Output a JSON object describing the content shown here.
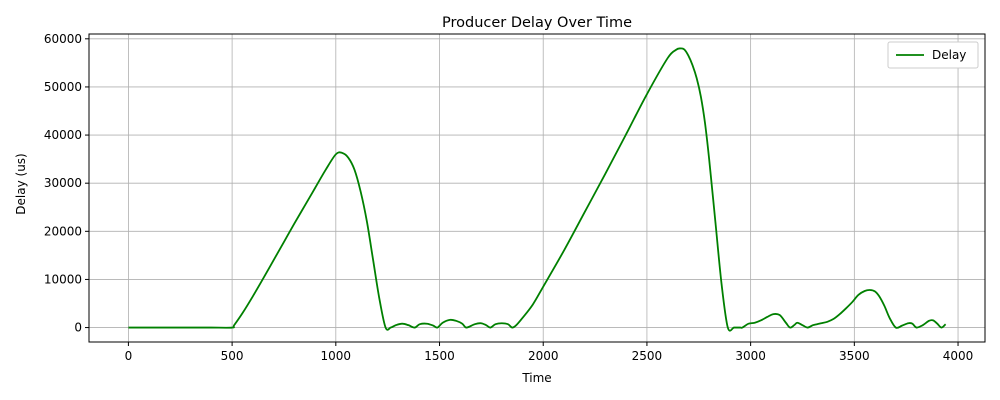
{
  "chart_data": {
    "type": "line",
    "title": "Producer Delay Over Time",
    "xlabel": "Time",
    "ylabel": "Delay (us)",
    "xlim": [
      -190,
      4130
    ],
    "ylim": [
      -3000,
      61000
    ],
    "xticks": [
      0,
      500,
      1000,
      1500,
      2000,
      2500,
      3000,
      3500,
      4000
    ],
    "yticks": [
      0,
      10000,
      20000,
      30000,
      40000,
      50000,
      60000
    ],
    "grid": true,
    "legend": "top-right",
    "series": [
      {
        "name": "Delay",
        "color": "#008000",
        "x": [
          0,
          100,
          200,
          300,
          400,
          500,
          510,
          550,
          600,
          650,
          700,
          750,
          800,
          850,
          900,
          950,
          1000,
          1030,
          1060,
          1090,
          1120,
          1150,
          1180,
          1210,
          1240,
          1265,
          1290,
          1320,
          1350,
          1380,
          1405,
          1440,
          1470,
          1490,
          1515,
          1550,
          1580,
          1610,
          1630,
          1670,
          1700,
          1725,
          1745,
          1770,
          1800,
          1830,
          1850,
          1870,
          1900,
          1950,
          2000,
          2100,
          2200,
          2300,
          2400,
          2500,
          2600,
          2640,
          2660,
          2680,
          2700,
          2720,
          2740,
          2760,
          2780,
          2800,
          2830,
          2860,
          2890,
          2920,
          2950,
          2960,
          2990,
          3020,
          3050,
          3080,
          3110,
          3140,
          3170,
          3190,
          3210,
          3225,
          3250,
          3275,
          3300,
          3320,
          3340,
          3370,
          3400,
          3430,
          3460,
          3490,
          3520,
          3550,
          3575,
          3600,
          3620,
          3645,
          3670,
          3700,
          3730,
          3760,
          3780,
          3800,
          3830,
          3860,
          3880,
          3900,
          3920,
          3940
        ],
        "y": [
          0,
          0,
          0,
          0,
          0,
          0,
          500,
          3000,
          6500,
          10200,
          14000,
          17800,
          21600,
          25300,
          29000,
          32700,
          36000,
          36300,
          35300,
          32800,
          28200,
          22000,
          14000,
          6000,
          0,
          0,
          500,
          800,
          500,
          0,
          700,
          800,
          400,
          0,
          1000,
          1600,
          1400,
          800,
          0,
          700,
          900,
          500,
          0,
          700,
          900,
          700,
          0,
          500,
          2000,
          4800,
          8500,
          16000,
          24000,
          32000,
          40200,
          48500,
          56000,
          57700,
          58000,
          57800,
          56500,
          54500,
          51800,
          48000,
          42500,
          35000,
          22000,
          9000,
          0,
          0,
          0,
          0,
          800,
          1000,
          1500,
          2200,
          2800,
          2600,
          1000,
          0,
          500,
          1000,
          500,
          0,
          500,
          700,
          900,
          1200,
          1800,
          2800,
          4000,
          5300,
          6800,
          7600,
          7800,
          7500,
          6500,
          4500,
          2000,
          0,
          400,
          900,
          800,
          0,
          500,
          1400,
          1500,
          800,
          0,
          700
        ]
      }
    ]
  }
}
